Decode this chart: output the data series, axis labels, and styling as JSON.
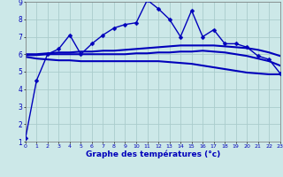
{
  "title": "Graphe des températures (°c)",
  "background_color": "#cce8e8",
  "grid_color": "#aacccc",
  "line_color": "#0000bb",
  "ylim": [
    1,
    9
  ],
  "xlim": [
    0,
    23
  ],
  "yticks": [
    1,
    2,
    3,
    4,
    5,
    6,
    7,
    8,
    9
  ],
  "xticks": [
    0,
    1,
    2,
    3,
    4,
    5,
    6,
    7,
    8,
    9,
    10,
    11,
    12,
    13,
    14,
    15,
    16,
    17,
    18,
    19,
    20,
    21,
    22,
    23
  ],
  "series": [
    {
      "x": [
        0,
        1,
        2,
        3,
        4,
        5,
        6,
        7,
        8,
        9,
        10,
        11,
        12,
        13,
        14,
        15,
        16,
        17,
        18,
        19,
        20,
        21,
        22,
        23
      ],
      "y": [
        1.2,
        4.5,
        6.0,
        6.3,
        7.1,
        6.0,
        6.6,
        7.1,
        7.5,
        7.7,
        7.8,
        9.1,
        8.6,
        8.0,
        7.0,
        8.5,
        7.0,
        7.4,
        6.6,
        6.6,
        6.4,
        5.9,
        5.7,
        4.9
      ],
      "marker": "D",
      "markersize": 2.5,
      "linewidth": 1.0,
      "smooth": false
    },
    {
      "x": [
        0,
        1,
        2,
        3,
        4,
        5,
        6,
        7,
        8,
        9,
        10,
        11,
        12,
        13,
        14,
        15,
        16,
        17,
        18,
        19,
        20,
        21,
        22,
        23
      ],
      "y": [
        6.0,
        6.0,
        6.05,
        6.1,
        6.1,
        6.15,
        6.15,
        6.2,
        6.2,
        6.25,
        6.3,
        6.35,
        6.4,
        6.45,
        6.5,
        6.5,
        6.5,
        6.5,
        6.45,
        6.4,
        6.35,
        6.25,
        6.1,
        5.9
      ],
      "marker": null,
      "linewidth": 1.5,
      "smooth": true
    },
    {
      "x": [
        0,
        1,
        2,
        3,
        4,
        5,
        6,
        7,
        8,
        9,
        10,
        11,
        12,
        13,
        14,
        15,
        16,
        17,
        18,
        19,
        20,
        21,
        22,
        23
      ],
      "y": [
        5.95,
        5.95,
        6.0,
        6.0,
        6.0,
        6.0,
        6.0,
        6.0,
        6.0,
        6.0,
        6.05,
        6.05,
        6.1,
        6.1,
        6.15,
        6.15,
        6.2,
        6.15,
        6.1,
        6.0,
        5.9,
        5.75,
        5.6,
        5.35
      ],
      "marker": null,
      "linewidth": 1.5,
      "smooth": true
    },
    {
      "x": [
        0,
        1,
        2,
        3,
        4,
        5,
        6,
        7,
        8,
        9,
        10,
        11,
        12,
        13,
        14,
        15,
        16,
        17,
        18,
        19,
        20,
        21,
        22,
        23
      ],
      "y": [
        5.85,
        5.75,
        5.7,
        5.65,
        5.65,
        5.6,
        5.6,
        5.6,
        5.6,
        5.6,
        5.6,
        5.6,
        5.6,
        5.55,
        5.5,
        5.45,
        5.35,
        5.25,
        5.15,
        5.05,
        4.95,
        4.9,
        4.85,
        4.85
      ],
      "marker": null,
      "linewidth": 1.5,
      "smooth": true
    }
  ]
}
